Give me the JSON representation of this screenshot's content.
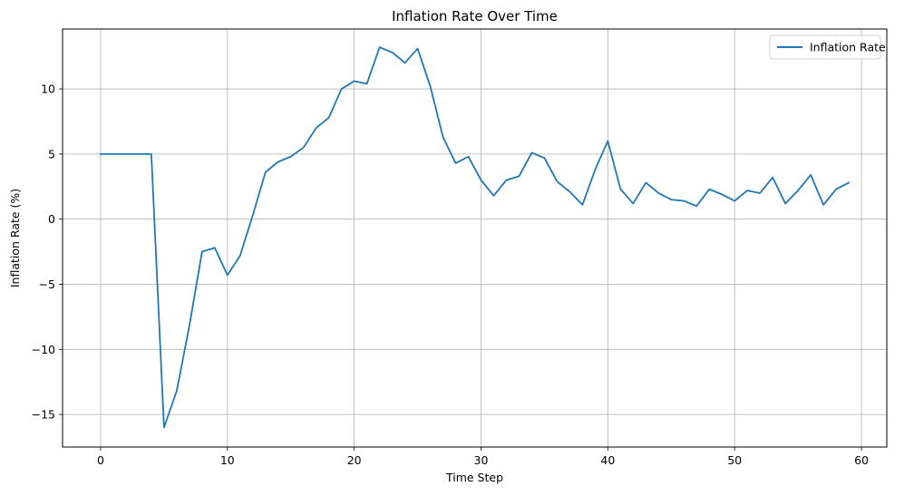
{
  "chart_data": {
    "type": "line",
    "title": "Inflation Rate Over Time",
    "xlabel": "Time Step",
    "ylabel": "Inflation Rate (%)",
    "xlim": [
      -3,
      62
    ],
    "ylim": [
      -17.5,
      14.6
    ],
    "xticks": [
      0,
      10,
      20,
      30,
      40,
      50,
      60
    ],
    "yticks": [
      -15,
      -10,
      -5,
      0,
      5,
      10
    ],
    "grid": true,
    "legend_position": "top-right",
    "series": [
      {
        "name": "Inflation Rate",
        "color": "#1f77b4",
        "x": [
          0,
          1,
          2,
          3,
          4,
          5,
          6,
          7,
          8,
          9,
          10,
          11,
          12,
          13,
          14,
          15,
          16,
          17,
          18,
          19,
          20,
          21,
          22,
          23,
          24,
          25,
          26,
          27,
          28,
          29,
          30,
          31,
          32,
          33,
          34,
          35,
          36,
          37,
          38,
          39,
          40,
          41,
          42,
          43,
          44,
          45,
          46,
          47,
          48,
          49,
          50,
          51,
          52,
          53,
          54,
          55,
          56,
          57,
          58,
          59
        ],
        "values": [
          5.0,
          5.0,
          5.0,
          5.0,
          5.0,
          -16.0,
          -13.2,
          -8.2,
          -2.5,
          -2.2,
          -4.3,
          -2.8,
          0.3,
          3.6,
          4.4,
          4.8,
          5.5,
          7.0,
          7.8,
          10.0,
          10.6,
          10.4,
          13.2,
          12.8,
          12.0,
          13.1,
          10.2,
          6.3,
          4.3,
          4.8,
          3.0,
          1.8,
          3.0,
          3.3,
          5.1,
          4.7,
          2.9,
          2.1,
          1.1,
          3.8,
          6.0,
          2.3,
          1.2,
          2.8,
          2.0,
          1.5,
          1.4,
          1.0,
          2.3,
          1.9,
          1.4,
          2.2,
          2.0,
          3.2,
          1.2,
          2.2,
          3.4,
          1.1,
          2.3,
          2.8
        ]
      }
    ]
  }
}
